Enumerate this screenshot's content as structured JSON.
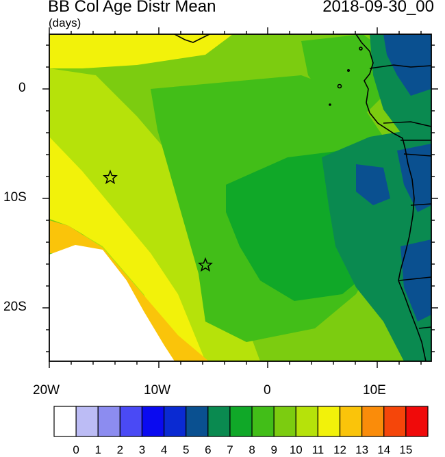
{
  "header": {
    "title": "BB Col Age Distr Mean",
    "date": "2018-09-30_00",
    "units": "(days)"
  },
  "axes": {
    "x_labels": [
      "20W",
      "10W",
      "0",
      "10E"
    ],
    "y_labels": [
      "0",
      "10S",
      "20S"
    ]
  },
  "colorbar": {
    "labels": [
      "0",
      "1",
      "2",
      "3",
      "4",
      "5",
      "6",
      "7",
      "8",
      "9",
      "10",
      "11",
      "12",
      "13",
      "14",
      "15"
    ],
    "colors": [
      "#ffffff",
      "#bcbcf5",
      "#8c8cf0",
      "#4a4af5",
      "#0a0af0",
      "#0a2ad2",
      "#0a5090",
      "#0a8a50",
      "#10a828",
      "#42be18",
      "#7ccc10",
      "#b6e20a",
      "#f2f20a",
      "#fac40a",
      "#fa8c0a",
      "#f5460a",
      "#f00a0a"
    ]
  },
  "markers": {
    "stars": [
      "star-1",
      "star-2"
    ]
  }
}
